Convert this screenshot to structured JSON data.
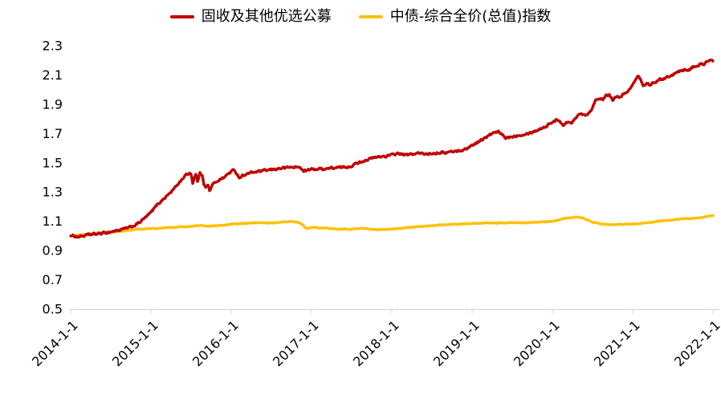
{
  "background": "#FFFFFF",
  "text_color": "#000000",
  "axis_color": "#D9D9D9",
  "chart_data": {
    "type": "line",
    "title": "",
    "grid": false,
    "legend_position": "top",
    "legend": [
      {
        "name": "固收及其他优选公募",
        "color": "#C00000"
      },
      {
        "name": "中债-综合全价(总值)指数",
        "color": "#FFC000"
      }
    ],
    "x_axis": {
      "tick_labels": [
        "2014-1-1",
        "2015-1-1",
        "2016-1-1",
        "2017-1-1",
        "2018-1-1",
        "2019-1-1",
        "2020-1-1",
        "2021-1-1",
        "2022-1-1"
      ],
      "unit": "date",
      "range_years": [
        2014,
        2022
      ]
    },
    "y_axis": {
      "min": 0.5,
      "max": 2.3,
      "step": 0.2,
      "tick_labels": [
        "0.5",
        "0.7",
        "0.9",
        "1.1",
        "1.3",
        "1.5",
        "1.7",
        "1.9",
        "2.1",
        "2.3"
      ]
    },
    "series": [
      {
        "name": "固收及其他优选公募",
        "color": "#C00000",
        "x_unit": "years_since_2014_01_01",
        "points": [
          [
            0.0,
            1.0
          ],
          [
            0.06,
            0.998
          ],
          [
            0.1,
            0.995
          ],
          [
            0.15,
            1.0
          ],
          [
            0.2,
            1.005
          ],
          [
            0.3,
            1.012
          ],
          [
            0.4,
            1.018
          ],
          [
            0.5,
            1.028
          ],
          [
            0.6,
            1.04
          ],
          [
            0.7,
            1.052
          ],
          [
            0.75,
            1.06
          ],
          [
            0.83,
            1.082
          ],
          [
            0.92,
            1.12
          ],
          [
            1.0,
            1.16
          ],
          [
            1.08,
            1.215
          ],
          [
            1.17,
            1.26
          ],
          [
            1.25,
            1.3
          ],
          [
            1.33,
            1.35
          ],
          [
            1.42,
            1.41
          ],
          [
            1.48,
            1.43
          ],
          [
            1.5,
            1.428
          ],
          [
            1.52,
            1.362
          ],
          [
            1.54,
            1.4
          ],
          [
            1.56,
            1.42
          ],
          [
            1.58,
            1.372
          ],
          [
            1.61,
            1.428
          ],
          [
            1.64,
            1.418
          ],
          [
            1.66,
            1.36
          ],
          [
            1.68,
            1.332
          ],
          [
            1.71,
            1.345
          ],
          [
            1.73,
            1.31
          ],
          [
            1.77,
            1.35
          ],
          [
            1.81,
            1.37
          ],
          [
            1.85,
            1.385
          ],
          [
            1.92,
            1.402
          ],
          [
            1.96,
            1.425
          ],
          [
            2.0,
            1.44
          ],
          [
            2.04,
            1.45
          ],
          [
            2.1,
            1.4
          ],
          [
            2.17,
            1.42
          ],
          [
            2.25,
            1.432
          ],
          [
            2.33,
            1.44
          ],
          [
            2.42,
            1.446
          ],
          [
            2.5,
            1.452
          ],
          [
            2.58,
            1.46
          ],
          [
            2.67,
            1.466
          ],
          [
            2.75,
            1.47
          ],
          [
            2.83,
            1.47
          ],
          [
            2.88,
            1.462
          ],
          [
            2.9,
            1.442
          ],
          [
            2.96,
            1.45
          ],
          [
            3.0,
            1.455
          ],
          [
            3.08,
            1.458
          ],
          [
            3.17,
            1.46
          ],
          [
            3.25,
            1.464
          ],
          [
            3.33,
            1.466
          ],
          [
            3.42,
            1.47
          ],
          [
            3.5,
            1.48
          ],
          [
            3.58,
            1.5
          ],
          [
            3.67,
            1.518
          ],
          [
            3.75,
            1.53
          ],
          [
            3.83,
            1.54
          ],
          [
            3.92,
            1.546
          ],
          [
            4.0,
            1.552
          ],
          [
            4.08,
            1.565
          ],
          [
            4.17,
            1.552
          ],
          [
            4.25,
            1.558
          ],
          [
            4.33,
            1.565
          ],
          [
            4.42,
            1.56
          ],
          [
            4.5,
            1.566
          ],
          [
            4.58,
            1.57
          ],
          [
            4.67,
            1.57
          ],
          [
            4.75,
            1.576
          ],
          [
            4.83,
            1.582
          ],
          [
            4.92,
            1.592
          ],
          [
            5.0,
            1.62
          ],
          [
            5.08,
            1.645
          ],
          [
            5.17,
            1.672
          ],
          [
            5.25,
            1.7
          ],
          [
            5.33,
            1.71
          ],
          [
            5.42,
            1.67
          ],
          [
            5.5,
            1.68
          ],
          [
            5.58,
            1.69
          ],
          [
            5.67,
            1.7
          ],
          [
            5.75,
            1.71
          ],
          [
            5.83,
            1.728
          ],
          [
            5.92,
            1.75
          ],
          [
            6.0,
            1.78
          ],
          [
            6.08,
            1.795
          ],
          [
            6.13,
            1.76
          ],
          [
            6.19,
            1.78
          ],
          [
            6.23,
            1.765
          ],
          [
            6.29,
            1.81
          ],
          [
            6.33,
            1.84
          ],
          [
            6.42,
            1.828
          ],
          [
            6.46,
            1.845
          ],
          [
            6.5,
            1.88
          ],
          [
            6.54,
            1.93
          ],
          [
            6.58,
            1.945
          ],
          [
            6.63,
            1.93
          ],
          [
            6.67,
            1.958
          ],
          [
            6.71,
            1.962
          ],
          [
            6.75,
            1.93
          ],
          [
            6.79,
            1.945
          ],
          [
            6.83,
            1.95
          ],
          [
            6.88,
            1.968
          ],
          [
            6.92,
            1.975
          ],
          [
            6.96,
            2.0
          ],
          [
            7.0,
            2.04
          ],
          [
            7.04,
            2.08
          ],
          [
            7.06,
            2.1
          ],
          [
            7.1,
            2.075
          ],
          [
            7.13,
            2.03
          ],
          [
            7.17,
            2.045
          ],
          [
            7.21,
            2.03
          ],
          [
            7.25,
            2.05
          ],
          [
            7.33,
            2.065
          ],
          [
            7.42,
            2.085
          ],
          [
            7.5,
            2.105
          ],
          [
            7.58,
            2.125
          ],
          [
            7.63,
            2.13
          ],
          [
            7.67,
            2.14
          ],
          [
            7.71,
            2.135
          ],
          [
            7.75,
            2.155
          ],
          [
            7.83,
            2.17
          ],
          [
            7.88,
            2.175
          ],
          [
            7.92,
            2.19
          ],
          [
            7.96,
            2.2
          ],
          [
            8.0,
            2.195
          ]
        ]
      },
      {
        "name": "中债-综合全价(总值)指数",
        "color": "#FFC000",
        "x_unit": "years_since_2014_01_01",
        "points": [
          [
            0.0,
            1.0
          ],
          [
            0.17,
            1.01
          ],
          [
            0.33,
            1.02
          ],
          [
            0.5,
            1.026
          ],
          [
            0.67,
            1.035
          ],
          [
            0.83,
            1.045
          ],
          [
            1.0,
            1.05
          ],
          [
            1.17,
            1.056
          ],
          [
            1.33,
            1.06
          ],
          [
            1.5,
            1.065
          ],
          [
            1.63,
            1.072
          ],
          [
            1.7,
            1.066
          ],
          [
            1.83,
            1.07
          ],
          [
            2.0,
            1.08
          ],
          [
            2.17,
            1.086
          ],
          [
            2.33,
            1.09
          ],
          [
            2.5,
            1.09
          ],
          [
            2.67,
            1.095
          ],
          [
            2.75,
            1.1
          ],
          [
            2.83,
            1.095
          ],
          [
            2.88,
            1.082
          ],
          [
            2.92,
            1.058
          ],
          [
            2.96,
            1.052
          ],
          [
            3.0,
            1.06
          ],
          [
            3.08,
            1.055
          ],
          [
            3.17,
            1.054
          ],
          [
            3.25,
            1.05
          ],
          [
            3.33,
            1.046
          ],
          [
            3.42,
            1.046
          ],
          [
            3.5,
            1.046
          ],
          [
            3.58,
            1.05
          ],
          [
            3.67,
            1.05
          ],
          [
            3.75,
            1.046
          ],
          [
            3.83,
            1.042
          ],
          [
            3.92,
            1.046
          ],
          [
            4.0,
            1.046
          ],
          [
            4.08,
            1.05
          ],
          [
            4.17,
            1.056
          ],
          [
            4.25,
            1.06
          ],
          [
            4.33,
            1.064
          ],
          [
            4.42,
            1.066
          ],
          [
            4.5,
            1.07
          ],
          [
            4.58,
            1.074
          ],
          [
            4.67,
            1.076
          ],
          [
            4.75,
            1.08
          ],
          [
            4.83,
            1.08
          ],
          [
            4.92,
            1.084
          ],
          [
            5.0,
            1.086
          ],
          [
            5.17,
            1.09
          ],
          [
            5.33,
            1.086
          ],
          [
            5.5,
            1.09
          ],
          [
            5.67,
            1.09
          ],
          [
            5.83,
            1.095
          ],
          [
            6.0,
            1.1
          ],
          [
            6.08,
            1.11
          ],
          [
            6.17,
            1.12
          ],
          [
            6.25,
            1.126
          ],
          [
            6.33,
            1.13
          ],
          [
            6.42,
            1.114
          ],
          [
            6.5,
            1.092
          ],
          [
            6.58,
            1.082
          ],
          [
            6.67,
            1.08
          ],
          [
            6.75,
            1.076
          ],
          [
            6.83,
            1.08
          ],
          [
            6.92,
            1.08
          ],
          [
            7.0,
            1.08
          ],
          [
            7.08,
            1.085
          ],
          [
            7.17,
            1.09
          ],
          [
            7.25,
            1.095
          ],
          [
            7.33,
            1.1
          ],
          [
            7.42,
            1.105
          ],
          [
            7.5,
            1.11
          ],
          [
            7.58,
            1.114
          ],
          [
            7.67,
            1.118
          ],
          [
            7.75,
            1.12
          ],
          [
            7.83,
            1.124
          ],
          [
            7.92,
            1.13
          ],
          [
            8.0,
            1.14
          ]
        ]
      }
    ]
  }
}
